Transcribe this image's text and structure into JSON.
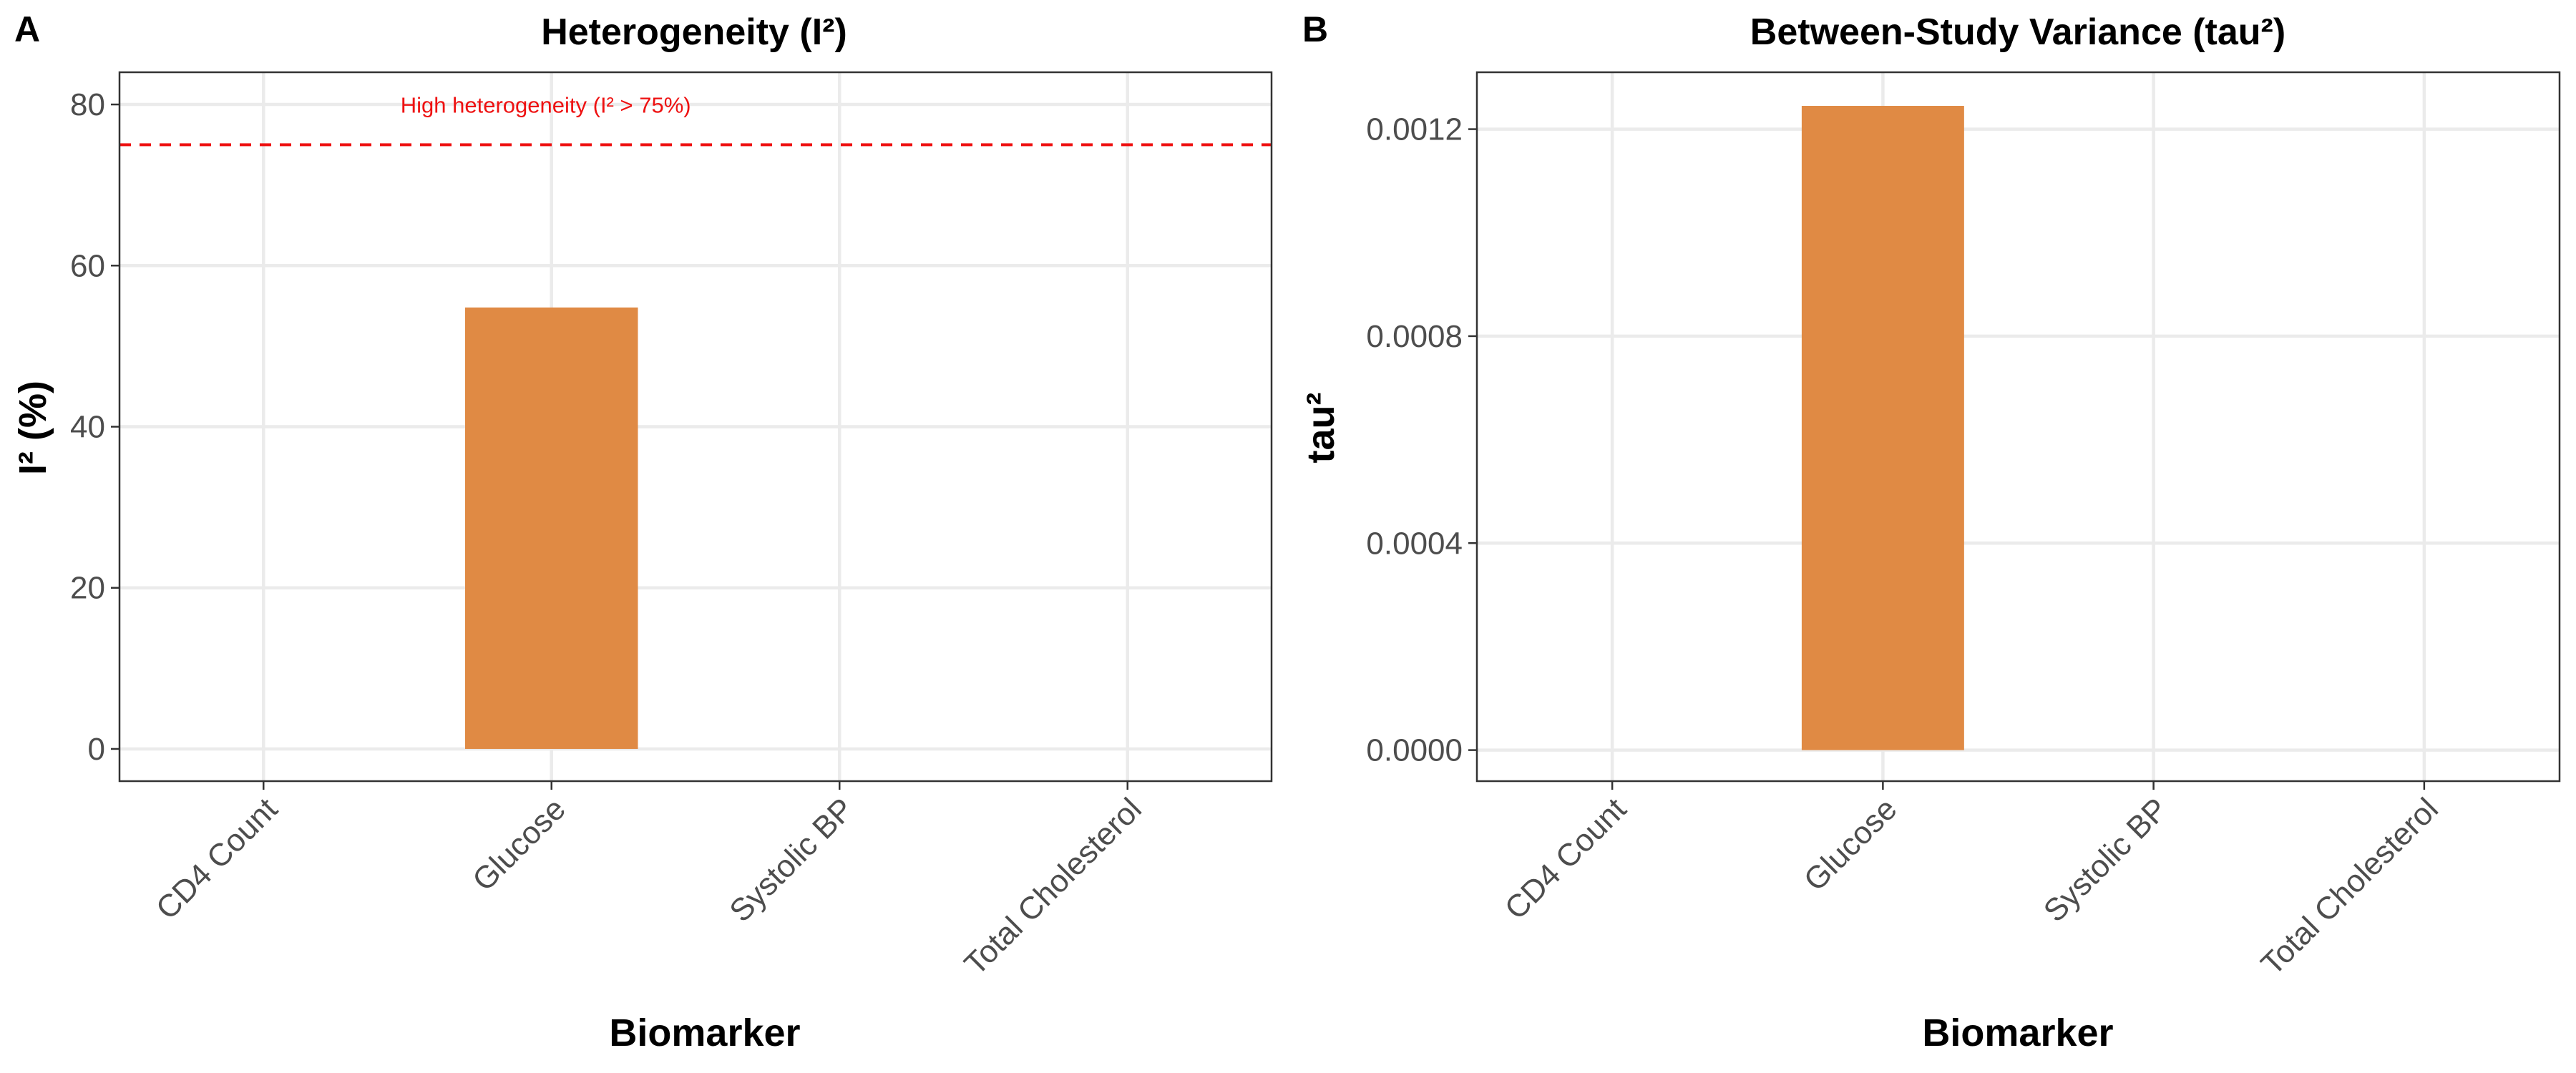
{
  "chart_data": [
    {
      "type": "bar",
      "panel_label": "A",
      "title": "Heterogeneity (I²)",
      "xlabel": "Biomarker",
      "ylabel": "I² (%)",
      "categories": [
        "CD4 Count",
        "Glucose",
        "Systolic BP",
        "Total Cholesterol"
      ],
      "values": [
        0,
        54.8,
        0,
        0
      ],
      "ylim": [
        -4,
        84
      ],
      "yticks": [
        0,
        20,
        40,
        60,
        80
      ],
      "ytick_labels": [
        "0",
        "20",
        "40",
        "60",
        "80"
      ],
      "grid": true,
      "legend": "none",
      "bar_color": "#E08A44",
      "reference_line": {
        "y": 75,
        "style": "dashed",
        "color": "#EE1111",
        "label": "High heterogeneity (I² > 75%)"
      }
    },
    {
      "type": "bar",
      "panel_label": "B",
      "title": "Between-Study Variance (tau²)",
      "xlabel": "Biomarker",
      "ylabel": "tau²",
      "categories": [
        "CD4 Count",
        "Glucose",
        "Systolic BP",
        "Total Cholesterol"
      ],
      "values": [
        0,
        0.001245,
        0,
        0
      ],
      "ylim": [
        -6e-05,
        0.00131
      ],
      "yticks": [
        0,
        0.0004,
        0.0008,
        0.0012
      ],
      "ytick_labels": [
        "0.0000",
        "0.0004",
        "0.0008",
        "0.0012"
      ],
      "grid": true,
      "legend": "none",
      "bar_color": "#E08A44"
    }
  ]
}
